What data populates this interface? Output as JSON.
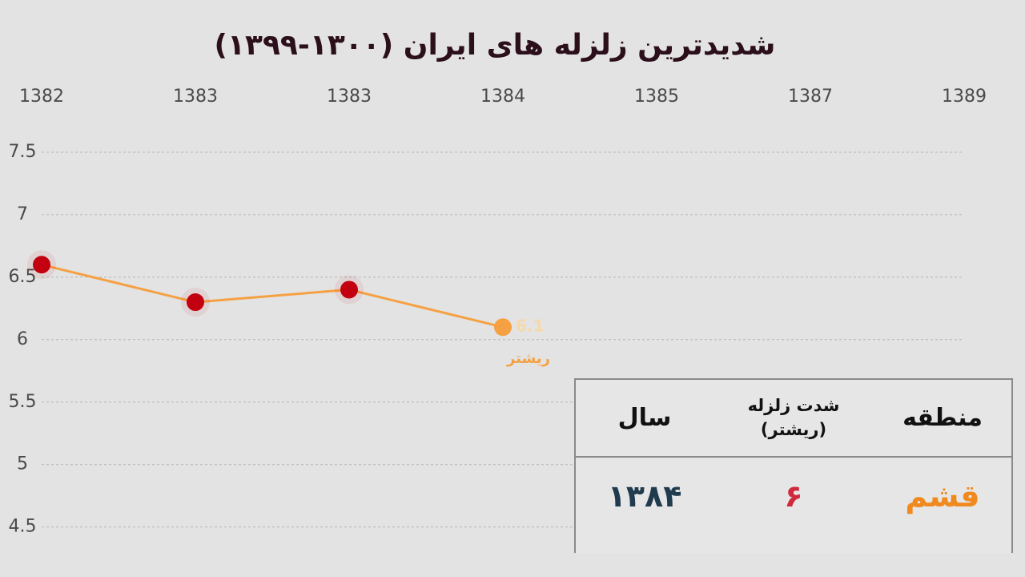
{
  "chart_data": {
    "type": "line",
    "title": "شدیدترین زلزله های ایران (۱۳۰۰-۱۳۹۹)",
    "categories": [
      "1382",
      "1383",
      "1383",
      "1384",
      "1385",
      "1387",
      "1389"
    ],
    "series": [
      {
        "name": "ریشتر",
        "color": "#f5a143",
        "point_colors": [
          "#c2000f",
          "#c2000f",
          "#c2000f",
          "#f5a143"
        ],
        "values": [
          6.6,
          6.3,
          6.4,
          6.1,
          null,
          null,
          null
        ]
      }
    ],
    "ylim": [
      4.1,
      7.75
    ],
    "yticks": [
      4.5,
      5,
      5.5,
      6,
      6.5,
      7,
      7.5
    ],
    "grid": true
  },
  "table": {
    "headers": [
      "منطقه",
      "شدت زلزله (ریشتر)",
      "سال"
    ],
    "rows": [
      [
        "قشم",
        "۶",
        "۱۳۸۴"
      ]
    ]
  }
}
